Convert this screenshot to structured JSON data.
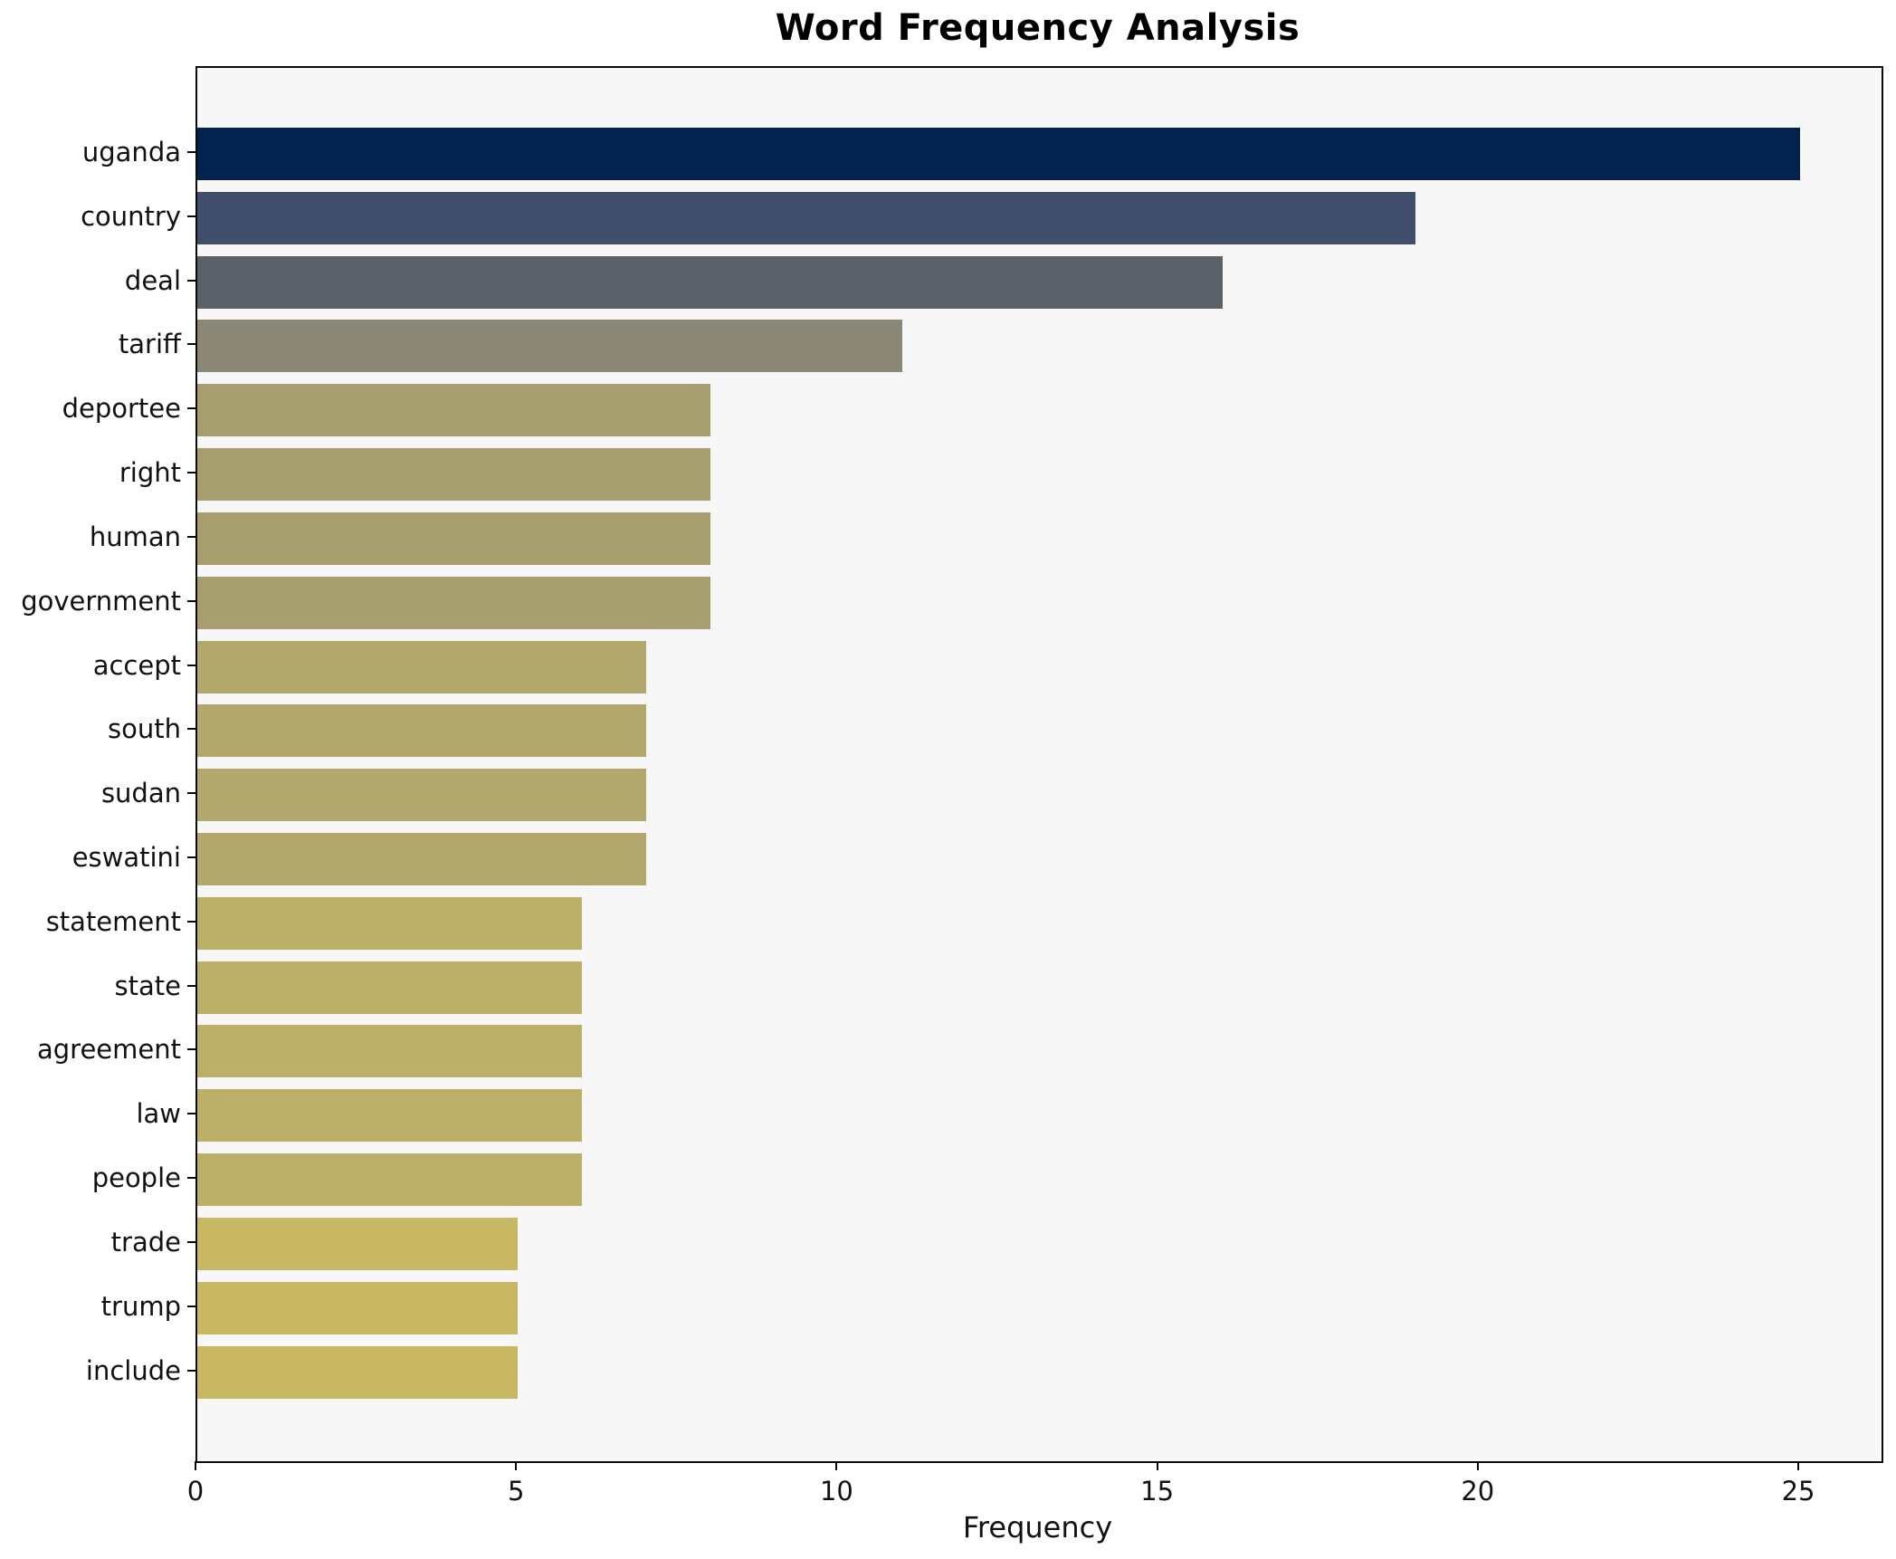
{
  "title": "Word Frequency Analysis",
  "xlabel": "Frequency",
  "chart_data": {
    "type": "bar",
    "orientation": "horizontal",
    "title": "Word Frequency Analysis",
    "xlabel": "Frequency",
    "ylabel": "",
    "categories": [
      "uganda",
      "country",
      "deal",
      "tariff",
      "deportee",
      "right",
      "human",
      "government",
      "accept",
      "south",
      "sudan",
      "eswatini",
      "statement",
      "state",
      "agreement",
      "law",
      "people",
      "trade",
      "trump",
      "include"
    ],
    "values": [
      25,
      19,
      16,
      11,
      8,
      8,
      8,
      8,
      7,
      7,
      7,
      7,
      6,
      6,
      6,
      6,
      6,
      5,
      5,
      5
    ],
    "bar_colors": [
      "#02234e",
      "#414e6c",
      "#5c6069",
      "#8a8777",
      "#a89f70",
      "#a89f70",
      "#a89f70",
      "#a89f70",
      "#b2a76d",
      "#b2a76d",
      "#b2a76d",
      "#b2a76d",
      "#bcaf68",
      "#bcaf68",
      "#bcaf68",
      "#bcaf68",
      "#bcaf68",
      "#c8b763",
      "#c8b763",
      "#c8b763"
    ],
    "xticks": [
      0,
      5,
      10,
      15,
      20,
      25
    ],
    "xlim": [
      0,
      26.27
    ],
    "grid": false,
    "legend": "none",
    "plot_background": "#f7f7f8",
    "figure_background": "#ffffff",
    "spine_color": "#0a0a0a"
  }
}
